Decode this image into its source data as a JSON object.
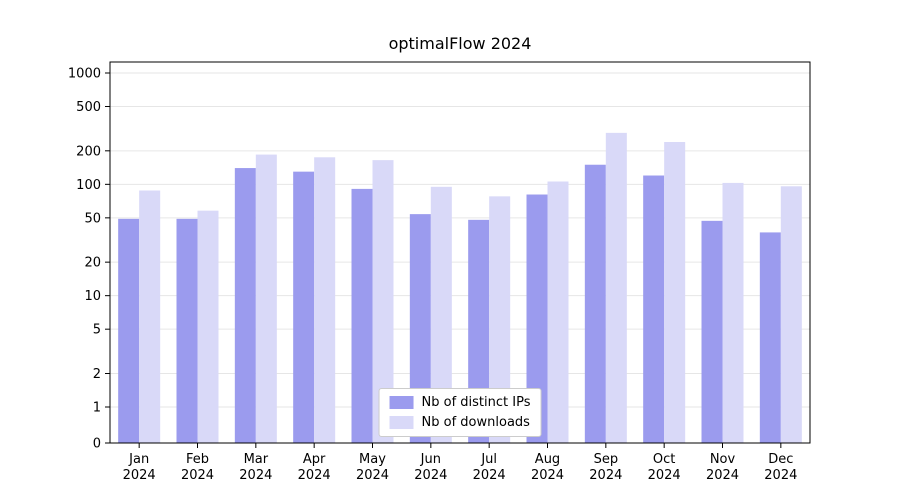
{
  "chart_data": {
    "type": "bar",
    "title": "optimalFlow 2024",
    "categories": [
      "Jan 2024",
      "Feb 2024",
      "Mar 2024",
      "Apr 2024",
      "May 2024",
      "Jun 2024",
      "Jul 2024",
      "Aug 2024",
      "Sep 2024",
      "Oct 2024",
      "Nov 2024",
      "Dec 2024"
    ],
    "series": [
      {
        "name": "Nb of distinct IPs",
        "color": "#9b9bee",
        "values": [
          49,
          49,
          140,
          130,
          91,
          54,
          48,
          81,
          150,
          120,
          47,
          37
        ]
      },
      {
        "name": "Nb of downloads",
        "color": "#d9d9f8",
        "values": [
          88,
          58,
          185,
          175,
          165,
          95,
          78,
          106,
          290,
          240,
          103,
          96
        ]
      }
    ],
    "yscale": "symlog",
    "yticks": [
      0,
      1,
      2,
      5,
      10,
      20,
      50,
      100,
      200,
      500,
      1000
    ],
    "ylim": [
      0,
      1300
    ],
    "xlabel": "",
    "ylabel": "",
    "grid": true,
    "legend_position": "lower center",
    "colors": {
      "gridline": "#e6e6e6",
      "axis": "#000000",
      "background": "#ffffff"
    }
  }
}
